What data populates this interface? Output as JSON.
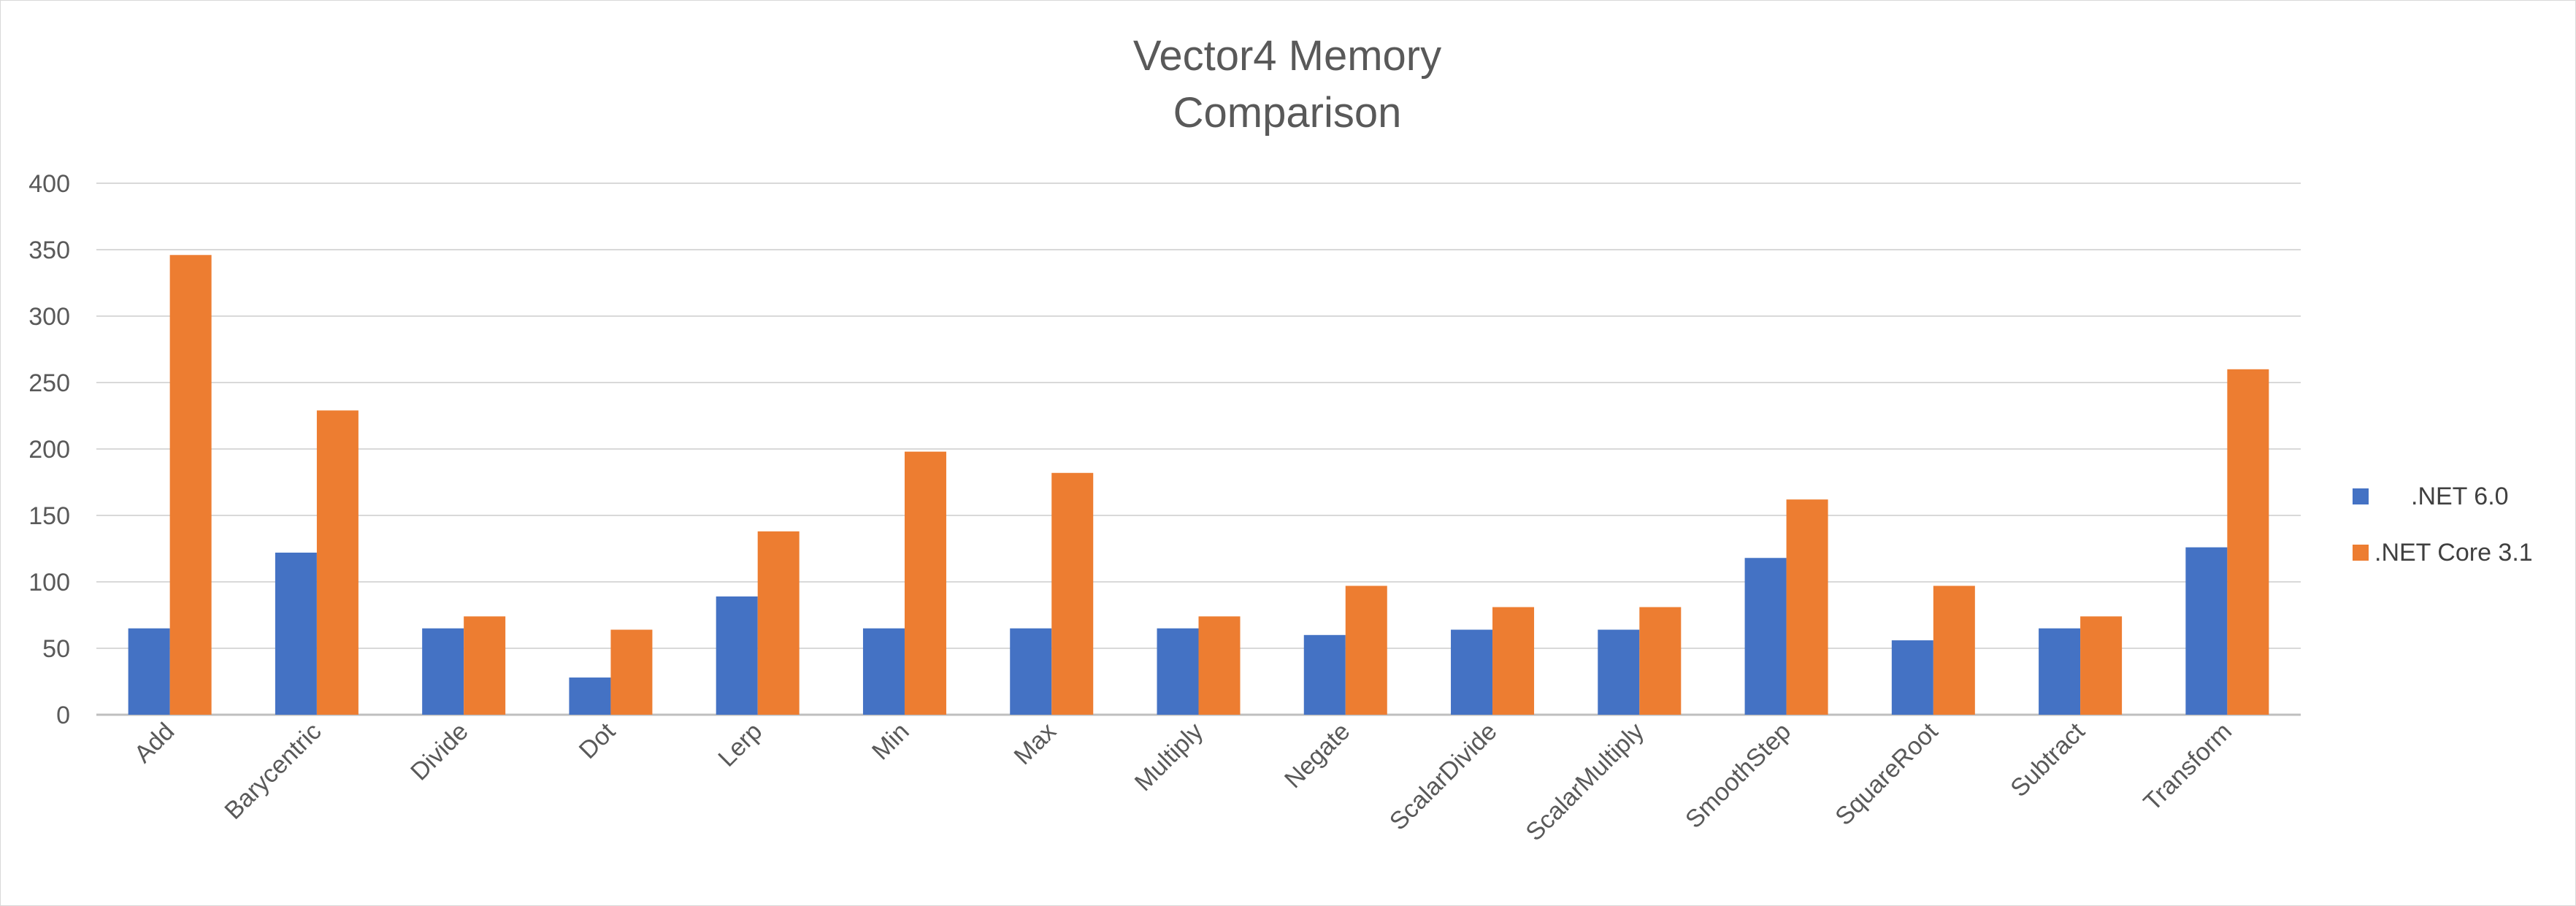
{
  "chart_data": {
    "type": "bar",
    "title_lines": [
      "Vector4 Memory",
      "Comparison"
    ],
    "xlabel": "",
    "ylabel": "",
    "ylim": [
      0,
      400
    ],
    "yticks": [
      0,
      50,
      100,
      150,
      200,
      250,
      300,
      350,
      400
    ],
    "grid": true,
    "legend_position": "right",
    "categories": [
      "Add",
      "Barycentric",
      "Divide",
      "Dot",
      "Lerp",
      "Min",
      "Max",
      "Multiply",
      "Negate",
      "ScalarDivide",
      "ScalarMultiply",
      "SmoothStep",
      "SquareRoot",
      "Subtract",
      "Transform"
    ],
    "series": [
      {
        "name": ".NET 6.0",
        "color": "#4472c4",
        "values": [
          65,
          122,
          65,
          28,
          89,
          65,
          65,
          65,
          60,
          64,
          64,
          118,
          56,
          65,
          126
        ]
      },
      {
        "name": ".NET Core 3.1",
        "color": "#ed7d31",
        "values": [
          346,
          229,
          74,
          64,
          138,
          198,
          182,
          74,
          97,
          81,
          81,
          162,
          97,
          74,
          260
        ]
      }
    ]
  }
}
